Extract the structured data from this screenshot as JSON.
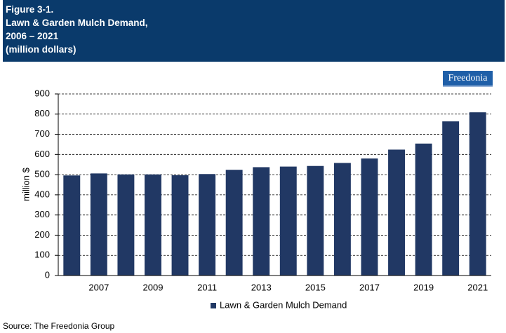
{
  "header": {
    "lines": [
      "Figure 3-1.",
      "Lawn & Garden Mulch Demand,",
      "2006 – 2021",
      "(million dollars)"
    ]
  },
  "logo": "Freedonia",
  "source": "Source: The Freedonia Group",
  "chart_data": {
    "type": "bar",
    "y_label": "million $",
    "categories": [
      null,
      "2007",
      null,
      "2009",
      null,
      "2011",
      null,
      "2013",
      null,
      "2015",
      null,
      "2017",
      null,
      "2019",
      null,
      "2021"
    ],
    "series": [
      {
        "name": "Lawn & Garden Mulch Demand",
        "color": "#213864",
        "values": [
          496,
          506,
          501,
          501,
          497,
          503,
          524,
          537,
          540,
          543,
          558,
          580,
          624,
          654,
          764,
          809
        ]
      }
    ],
    "ylim": [
      0,
      900
    ],
    "yticks": [
      0,
      100,
      200,
      300,
      400,
      500,
      600,
      700,
      800,
      900
    ],
    "grid": true,
    "legend": "bottom"
  }
}
